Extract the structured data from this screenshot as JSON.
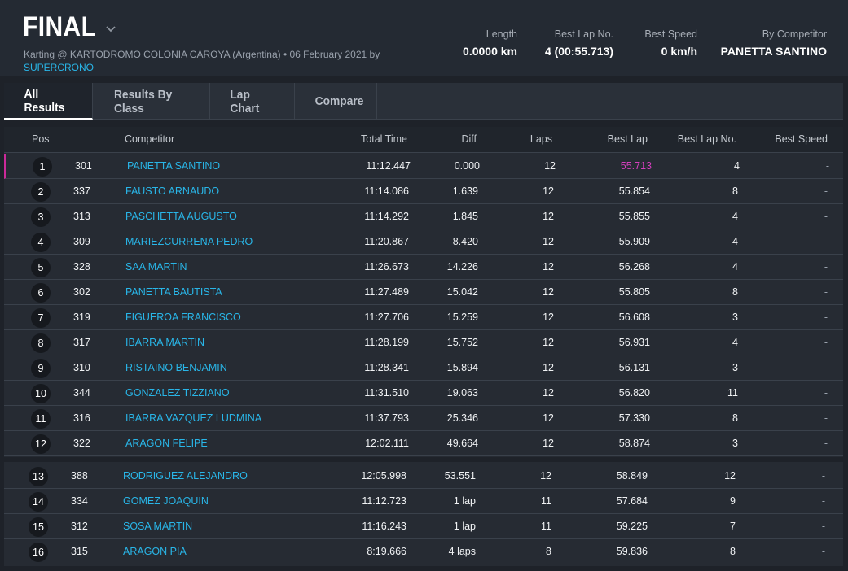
{
  "header": {
    "title": "FINAL",
    "subtitle_prefix": "Karting @ KARTODROMO COLONIA CAROYA (Argentina) • 06 February 2021 by ",
    "subtitle_link": "SUPERCRONO",
    "stats": [
      {
        "label": "Length",
        "value": "0.0000 km"
      },
      {
        "label": "Best Lap No.",
        "value": "4 (00:55.713)"
      },
      {
        "label": "Best Speed",
        "value": "0 km/h"
      },
      {
        "label": "By Competitor",
        "value": "PANETTA SANTINO"
      }
    ]
  },
  "tabs": [
    "All Results",
    "Results By Class",
    "Lap Chart",
    "Compare"
  ],
  "table": {
    "columns": [
      "Pos",
      "Competitor",
      "Total Time",
      "Diff",
      "Laps",
      "Best Lap",
      "Best Lap No.",
      "Best Speed"
    ],
    "rows": [
      {
        "pos": "1",
        "num": "301",
        "name": "PANETTA SANTINO",
        "total": "11:12.447",
        "diff": "0.000",
        "laps": "12",
        "best": "55.713",
        "bestno": "4",
        "speed": "-"
      },
      {
        "pos": "2",
        "num": "337",
        "name": "FAUSTO ARNAUDO",
        "total": "11:14.086",
        "diff": "1.639",
        "laps": "12",
        "best": "55.854",
        "bestno": "8",
        "speed": "-"
      },
      {
        "pos": "3",
        "num": "313",
        "name": "PASCHETTA AUGUSTO",
        "total": "11:14.292",
        "diff": "1.845",
        "laps": "12",
        "best": "55.855",
        "bestno": "4",
        "speed": "-"
      },
      {
        "pos": "4",
        "num": "309",
        "name": "MARIEZCURRENA PEDRO",
        "total": "11:20.867",
        "diff": "8.420",
        "laps": "12",
        "best": "55.909",
        "bestno": "4",
        "speed": "-"
      },
      {
        "pos": "5",
        "num": "328",
        "name": "SAA MARTIN",
        "total": "11:26.673",
        "diff": "14.226",
        "laps": "12",
        "best": "56.268",
        "bestno": "4",
        "speed": "-"
      },
      {
        "pos": "6",
        "num": "302",
        "name": "PANETTA BAUTISTA",
        "total": "11:27.489",
        "diff": "15.042",
        "laps": "12",
        "best": "55.805",
        "bestno": "8",
        "speed": "-"
      },
      {
        "pos": "7",
        "num": "319",
        "name": "FIGUEROA FRANCISCO",
        "total": "11:27.706",
        "diff": "15.259",
        "laps": "12",
        "best": "56.608",
        "bestno": "3",
        "speed": "-"
      },
      {
        "pos": "8",
        "num": "317",
        "name": "IBARRA MARTIN",
        "total": "11:28.199",
        "diff": "15.752",
        "laps": "12",
        "best": "56.931",
        "bestno": "4",
        "speed": "-"
      },
      {
        "pos": "9",
        "num": "310",
        "name": "RISTAINO BENJAMIN",
        "total": "11:28.341",
        "diff": "15.894",
        "laps": "12",
        "best": "56.131",
        "bestno": "3",
        "speed": "-"
      },
      {
        "pos": "10",
        "num": "344",
        "name": "GONZALEZ TIZZIANO",
        "total": "11:31.510",
        "diff": "19.063",
        "laps": "12",
        "best": "56.820",
        "bestno": "11",
        "speed": "-"
      },
      {
        "pos": "11",
        "num": "316",
        "name": "IBARRA VAZQUEZ LUDMINA",
        "total": "11:37.793",
        "diff": "25.346",
        "laps": "12",
        "best": "57.330",
        "bestno": "8",
        "speed": "-"
      },
      {
        "pos": "12",
        "num": "322",
        "name": "ARAGON FELIPE",
        "total": "12:02.111",
        "diff": "49.664",
        "laps": "12",
        "best": "58.874",
        "bestno": "3",
        "speed": "-"
      },
      {
        "pos": "13",
        "num": "388",
        "name": "RODRIGUEZ ALEJANDRO",
        "total": "12:05.998",
        "diff": "53.551",
        "laps": "12",
        "best": "58.849",
        "bestno": "12",
        "speed": "-"
      },
      {
        "pos": "14",
        "num": "334",
        "name": "GOMEZ JOAQUIN",
        "total": "11:12.723",
        "diff": "1 lap",
        "laps": "11",
        "best": "57.684",
        "bestno": "9",
        "speed": "-"
      },
      {
        "pos": "15",
        "num": "312",
        "name": "SOSA MARTIN",
        "total": "11:16.243",
        "diff": "1 lap",
        "laps": "11",
        "best": "59.225",
        "bestno": "7",
        "speed": "-"
      },
      {
        "pos": "16",
        "num": "315",
        "name": "ARAGON PIA",
        "total": "8:19.666",
        "diff": "4 laps",
        "laps": "8",
        "best": "59.836",
        "bestno": "8",
        "speed": "-"
      }
    ]
  },
  "colors": {
    "accent": "#29b6e8",
    "best_lap_highlight": "#d63fbe",
    "background": "#1e2229"
  }
}
